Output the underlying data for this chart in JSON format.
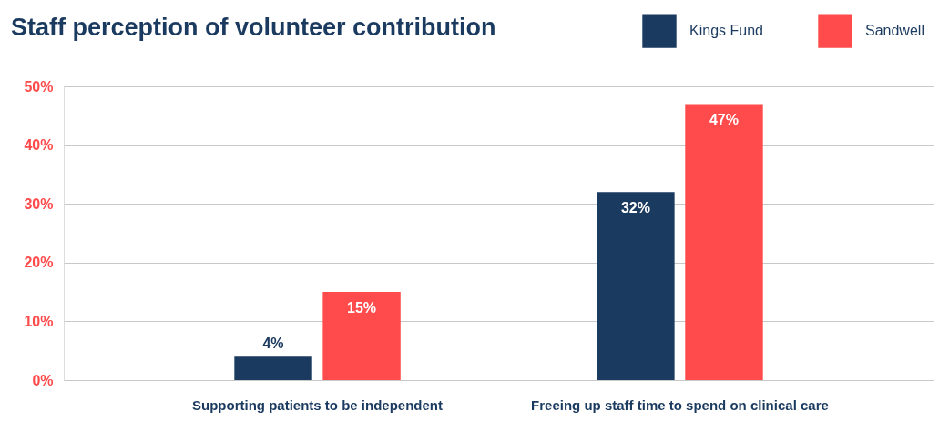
{
  "chart_data": {
    "type": "bar",
    "title": "Staff perception of volunteer contribution",
    "categories": [
      "Supporting patients to be independent",
      "Freeing up staff time to spend on clinical care"
    ],
    "series": [
      {
        "name": "Kings Fund",
        "color": "#1b3a5f",
        "values": [
          4,
          32
        ],
        "value_labels": [
          "4%",
          "32%"
        ]
      },
      {
        "name": "Sandwell",
        "color": "#ff4b4b",
        "values": [
          15,
          47
        ],
        "value_labels": [
          "15%",
          "47%"
        ]
      }
    ],
    "ylim": [
      0,
      50
    ],
    "yticks": [
      {
        "value": 0,
        "label": "0%"
      },
      {
        "value": 10,
        "label": "10%"
      },
      {
        "value": 20,
        "label": "20%"
      },
      {
        "value": 30,
        "label": "30%"
      },
      {
        "value": 40,
        "label": "40%"
      },
      {
        "value": 50,
        "label": "50%"
      }
    ],
    "grid": "y",
    "legend": "top right"
  }
}
